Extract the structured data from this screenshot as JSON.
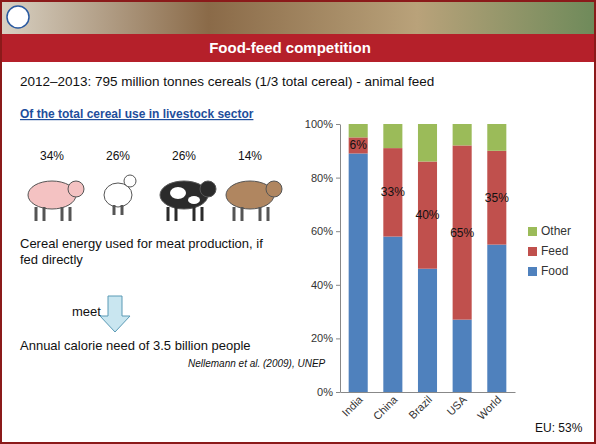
{
  "chart_data": [
    {
      "type": "bar",
      "stacked": true,
      "legend": "right",
      "title": "Food-feed competition",
      "subtitle": "2012–2013: 795 million tonnes cereals (1/3 total cereal) - animal feed",
      "categories": [
        "India",
        "China",
        "Brazil",
        "USA",
        "World"
      ],
      "series": [
        {
          "name": "Food",
          "color": "#4f81bd",
          "values": [
            89,
            58,
            46,
            27,
            55
          ]
        },
        {
          "name": "Feed",
          "color": "#c0504d",
          "values": [
            6,
            33,
            40,
            65,
            35
          ],
          "data_labels": true,
          "value_labels": [
            "6%",
            "33%",
            "40%",
            "65%",
            "35%"
          ]
        },
        {
          "name": "Other",
          "color": "#9bbb59",
          "values": [
            5,
            9,
            14,
            8,
            10
          ]
        }
      ],
      "ylim": [
        0,
        100
      ],
      "yticks": [
        {
          "value": 0,
          "label": "0%"
        },
        {
          "value": 20,
          "label": "20%"
        },
        {
          "value": 40,
          "label": "40%"
        },
        {
          "value": 60,
          "label": "60%"
        },
        {
          "value": 80,
          "label": "80%"
        },
        {
          "value": 100,
          "label": "100%"
        }
      ],
      "grid": false,
      "annotations": [
        "EU: 53%"
      ]
    },
    {
      "type": "pictograph",
      "title": "Of the total cereal use in livestock sector",
      "categories": [
        null,
        null,
        null,
        null
      ],
      "values": [
        34,
        26,
        26,
        14
      ],
      "value_labels": [
        "34%",
        "26%",
        "26%",
        "14%"
      ],
      "data_labels": true,
      "colors": [
        "#f4c2c2",
        "#ffffff",
        "#2b2b2b",
        "#b08660"
      ],
      "annotations": [
        "Cereal energy used for meat production, if fed directly",
        "meet",
        "Annual calorie need of 3.5 billion people",
        "Nellemann et al. (2009), UNEP"
      ]
    }
  ]
}
